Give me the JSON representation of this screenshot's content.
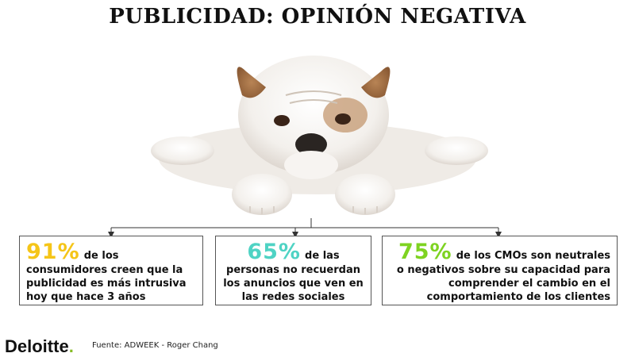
{
  "title": "PUBLICIDAD: OPINIÓN NEGATIVA",
  "image": {
    "subject": "puppy-bulldog-photo"
  },
  "stats": [
    {
      "percent": "91%",
      "lead": "de los",
      "body": "consumidores creen que la publicidad es más intrusiva hoy que hace 3 años",
      "color": "#f5c518"
    },
    {
      "percent": "65%",
      "lead": "de las",
      "body": "personas no recuerdan los anuncios que ven en las redes sociales",
      "color": "#4fd3c4"
    },
    {
      "percent": "75%",
      "lead": "de los CMOs son neutrales",
      "body": "o negativos sobre su capacidad para comprender el cambio en el comportamiento de los clientes",
      "color": "#7ed321"
    }
  ],
  "footer": {
    "brand": "Deloitte",
    "brand_dot": ".",
    "brand_dot_color": "#86bc25",
    "source": "Fuente: ADWEEK - Roger Chang"
  }
}
